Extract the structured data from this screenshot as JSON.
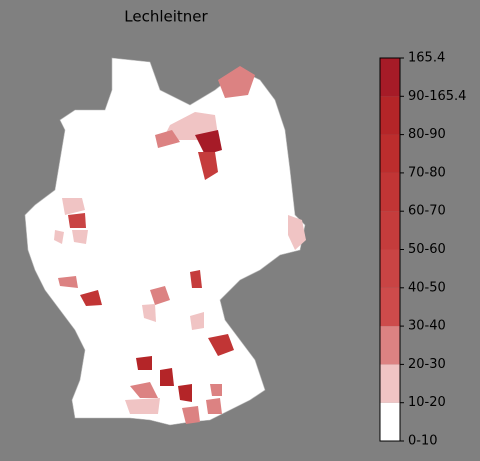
{
  "title": "Lechleitner",
  "colorbar": {
    "labels": [
      "0-10",
      "10-20",
      "20-30",
      "30-40",
      "40-50",
      "50-60",
      "60-70",
      "70-80",
      "80-90",
      "90-165.4",
      "165.4"
    ],
    "colors": [
      "#ffffff",
      "#f0c4c4",
      "#dc8282",
      "#cd4b4b",
      "#c94444",
      "#c53c3c",
      "#c13535",
      "#bc2d2d",
      "#b42528",
      "#a61b27"
    ]
  }
}
